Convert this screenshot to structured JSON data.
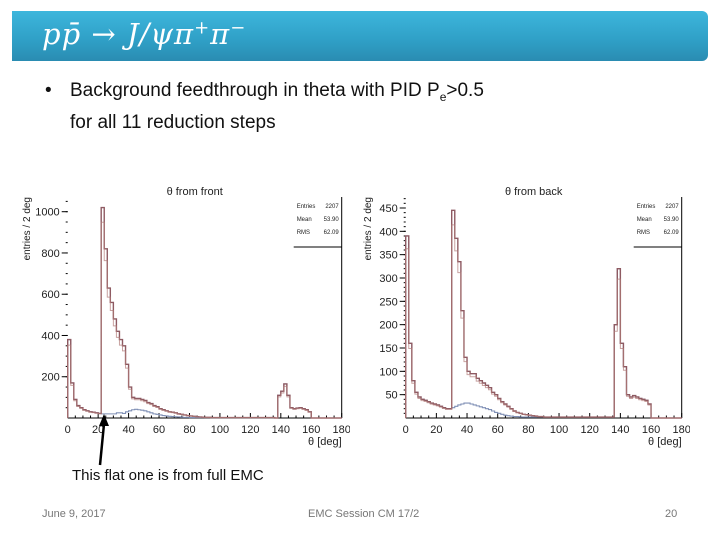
{
  "header": {
    "title_main": "pp̄ → J/ψπ",
    "title_plus": "+",
    "title_pi": "π",
    "title_minus": "−"
  },
  "bullet": {
    "marker": "•",
    "line1_pre": "Background feedthrough in theta with PID P",
    "line1_sub": "e",
    "line1_post": ">0.5",
    "line2": "for all 11 reduction steps"
  },
  "annotation": {
    "text": "This flat one is from full EMC"
  },
  "footer": {
    "date": "June 9, 2017",
    "session": "EMC Session CM 17/2",
    "page": "20"
  },
  "colors": {
    "banner": "#2f9fc6",
    "main": "#8e5a62",
    "secondary": "#b07a78",
    "flat": "#7f8fb5"
  },
  "chart_data": [
    {
      "type": "histogram",
      "title": "θ from front",
      "xlabel": "θ [deg]",
      "ylabel": "entries / 2 deg",
      "xlim": [
        0,
        180
      ],
      "ylim": [
        0,
        1050
      ],
      "bin_width": 2,
      "xticks": [
        "0",
        "20",
        "40",
        "60",
        "80",
        "100",
        "120",
        "140",
        "160",
        "180"
      ],
      "yticks": [
        "200",
        "400",
        "600",
        "800",
        "1000"
      ],
      "ytick_values": [
        200,
        400,
        600,
        800,
        1000
      ],
      "stats": {
        "labels": [
          "Entries",
          "Mean",
          "RMS"
        ],
        "values": [
          "2207",
          "53.90",
          "62.09"
        ]
      },
      "series": [
        {
          "name": "reduction steps",
          "values": [
            380,
            170,
            90,
            60,
            50,
            40,
            35,
            30,
            28,
            25,
            22,
            1020,
            820,
            630,
            560,
            480,
            420,
            380,
            350,
            260,
            150,
            100,
            95,
            95,
            90,
            85,
            75,
            70,
            60,
            55,
            45,
            40,
            35,
            30,
            28,
            25,
            20,
            18,
            15,
            12,
            10,
            8,
            6,
            5,
            4,
            3,
            3,
            2,
            2,
            2,
            2,
            2,
            2,
            2,
            2,
            2,
            2,
            2,
            2,
            2,
            2,
            2,
            2,
            2,
            2,
            2,
            2,
            2,
            0,
            110,
            130,
            165,
            110,
            50,
            45,
            48,
            50,
            45,
            40,
            30,
            0,
            0,
            0,
            0,
            0,
            0,
            0,
            0,
            0,
            0
          ]
        },
        {
          "name": "full EMC",
          "values": [
            380,
            170,
            90,
            60,
            50,
            40,
            35,
            30,
            28,
            25,
            22,
            20,
            20,
            20,
            20,
            20,
            25,
            25,
            22,
            30,
            35,
            40,
            42,
            40,
            38,
            35,
            30,
            25,
            20,
            18,
            15,
            12,
            10,
            8,
            7,
            6,
            5,
            4,
            3,
            3,
            2,
            2,
            2,
            2,
            2,
            2,
            2,
            2,
            2,
            2,
            2,
            2,
            2,
            2,
            2,
            2,
            2,
            2,
            2,
            2,
            2,
            2,
            2,
            2,
            2,
            2,
            2,
            2,
            0,
            110,
            130,
            165,
            110,
            50,
            45,
            48,
            50,
            45,
            40,
            30,
            0,
            0,
            0,
            0,
            0,
            0,
            0,
            0,
            0,
            0
          ]
        }
      ]
    },
    {
      "type": "histogram",
      "title": "θ from back",
      "xlabel": "θ [deg]",
      "ylabel": "entries / 2 deg",
      "xlim": [
        0,
        180
      ],
      "ylim": [
        0,
        480
      ],
      "bin_width": 2,
      "xticks": [
        "0",
        "20",
        "40",
        "60",
        "80",
        "100",
        "120",
        "140",
        "160",
        "180"
      ],
      "yticks": [
        "50",
        "100",
        "150",
        "200",
        "250",
        "300",
        "350",
        "400",
        "450"
      ],
      "ytick_values": [
        50,
        100,
        150,
        200,
        250,
        300,
        350,
        400,
        450
      ],
      "stats": {
        "labels": [
          "Entries",
          "Mean",
          "RMS"
        ],
        "values": [
          "2207",
          "53.90",
          "62.09"
        ]
      },
      "series": [
        {
          "name": "reduction steps",
          "values": [
            390,
            160,
            80,
            55,
            45,
            40,
            38,
            35,
            32,
            30,
            28,
            25,
            22,
            20,
            20,
            445,
            385,
            335,
            230,
            130,
            100,
            95,
            95,
            85,
            80,
            75,
            70,
            65,
            55,
            50,
            42,
            35,
            30,
            25,
            20,
            15,
            12,
            10,
            8,
            7,
            6,
            5,
            4,
            3,
            3,
            2,
            2,
            2,
            2,
            2,
            2,
            2,
            2,
            2,
            2,
            2,
            2,
            2,
            2,
            2,
            2,
            2,
            2,
            2,
            2,
            2,
            2,
            2,
            200,
            320,
            160,
            110,
            50,
            45,
            48,
            45,
            42,
            40,
            38,
            30,
            0,
            0,
            0,
            0,
            0,
            0,
            0,
            0,
            0,
            0
          ]
        },
        {
          "name": "full EMC",
          "values": [
            390,
            160,
            80,
            55,
            45,
            40,
            38,
            35,
            32,
            30,
            28,
            25,
            22,
            20,
            20,
            22,
            25,
            28,
            30,
            32,
            32,
            30,
            28,
            26,
            24,
            22,
            20,
            18,
            15,
            12,
            10,
            8,
            6,
            5,
            4,
            3,
            3,
            2,
            2,
            2,
            2,
            2,
            2,
            2,
            2,
            2,
            2,
            2,
            2,
            2,
            2,
            2,
            2,
            2,
            2,
            2,
            2,
            2,
            2,
            2,
            2,
            2,
            2,
            2,
            2,
            2,
            2,
            2,
            200,
            320,
            160,
            110,
            50,
            45,
            48,
            45,
            42,
            40,
            38,
            30,
            0,
            0,
            0,
            0,
            0,
            0,
            0,
            0,
            0,
            0
          ]
        }
      ]
    }
  ]
}
